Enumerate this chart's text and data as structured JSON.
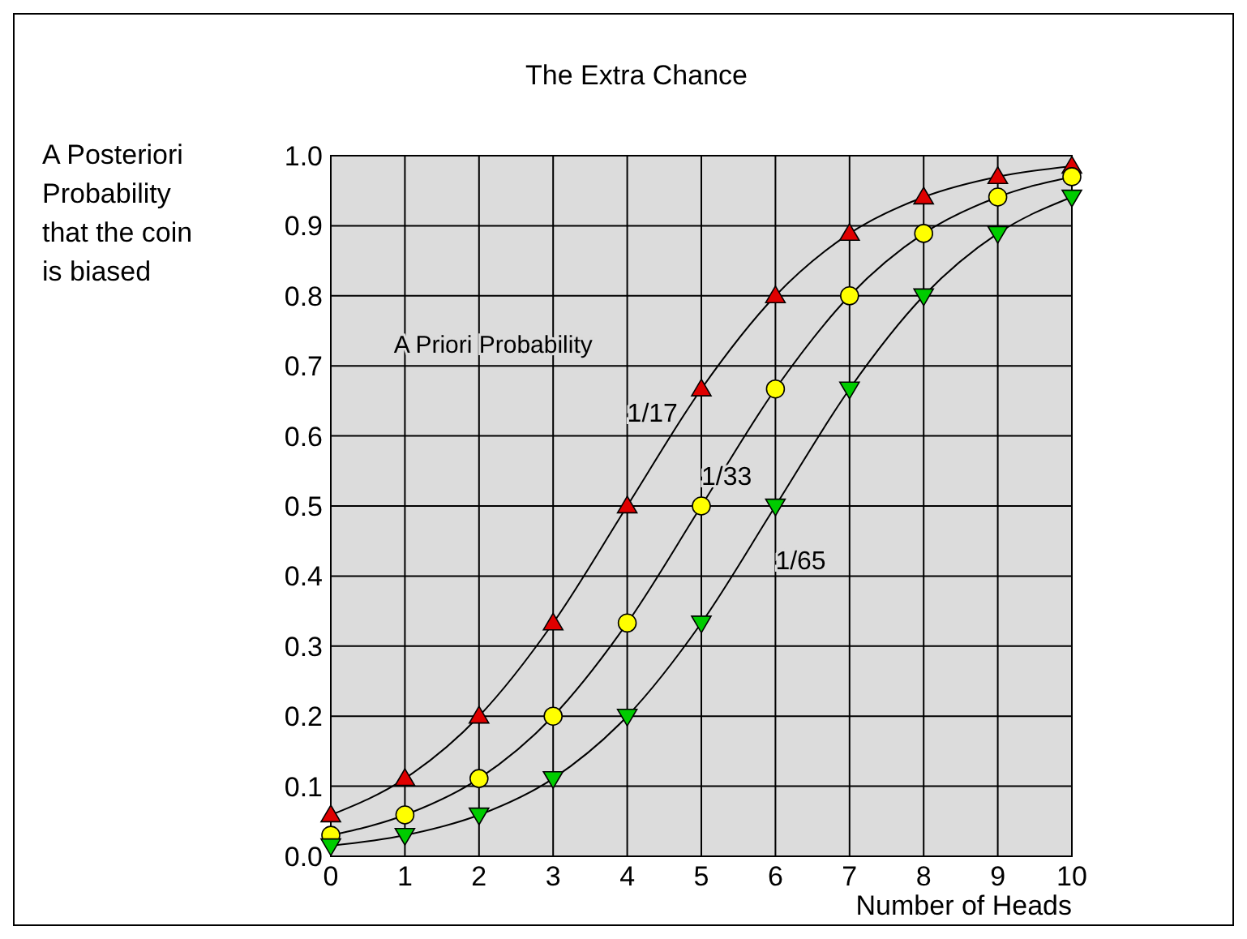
{
  "chart_data": {
    "type": "line",
    "title": "The Extra Chance",
    "xlabel": "Number of Heads",
    "ylabel": "A Posteriori\nProbability\nthat the coin\nis biased",
    "annotations": [
      "A Priori Probability"
    ],
    "x": [
      0,
      1,
      2,
      3,
      4,
      5,
      6,
      7,
      8,
      9,
      10
    ],
    "series": [
      {
        "name": "1/17",
        "color": "#e00000",
        "marker": "triangle",
        "values": [
          0.059,
          0.111,
          0.2,
          0.333,
          0.5,
          0.667,
          0.8,
          0.889,
          0.941,
          0.97,
          0.985
        ]
      },
      {
        "name": "1/33",
        "color": "#ffff00",
        "marker": "circle",
        "values": [
          0.03,
          0.059,
          0.111,
          0.2,
          0.333,
          0.5,
          0.667,
          0.8,
          0.889,
          0.941,
          0.97
        ]
      },
      {
        "name": "1/65",
        "color": "#00cc00",
        "marker": "triangle-down",
        "values": [
          0.015,
          0.03,
          0.059,
          0.111,
          0.2,
          0.333,
          0.5,
          0.667,
          0.8,
          0.889,
          0.941
        ]
      }
    ],
    "xlim": [
      0,
      10
    ],
    "xticks": [
      0,
      1,
      2,
      3,
      4,
      5,
      6,
      7,
      8,
      9,
      10
    ],
    "ylim": [
      0,
      1
    ],
    "yticks": [
      {
        "value": 0,
        "label": "0.0"
      },
      0.1,
      0.2,
      0.3,
      0.4,
      0.5,
      0.6,
      0.7,
      0.8,
      0.9,
      {
        "value": 1,
        "label": "1.0"
      }
    ],
    "grid": true
  }
}
